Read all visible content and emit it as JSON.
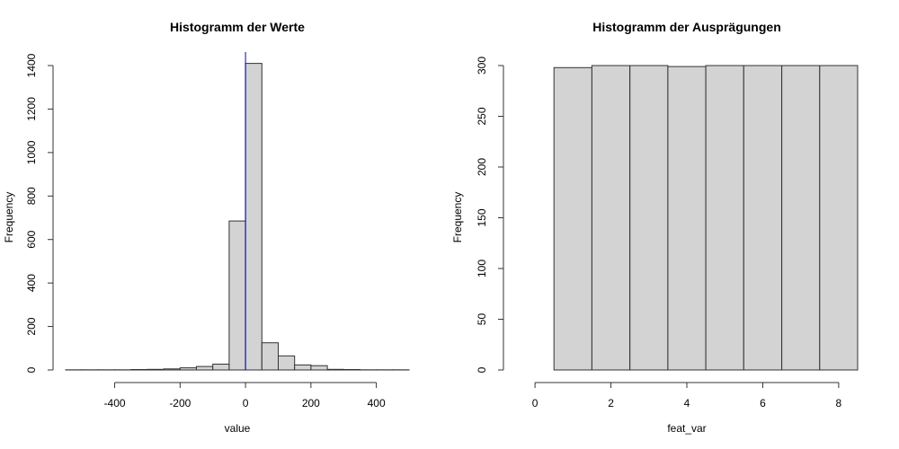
{
  "chart_data": [
    {
      "type": "bar",
      "title": "Histogramm der Werte",
      "xlabel": "value",
      "ylabel": "Frequency",
      "xlim": [
        -550,
        500
      ],
      "ylim": [
        0,
        1400
      ],
      "x_ticks": [
        -400,
        -200,
        0,
        200,
        400
      ],
      "y_ticks": [
        0,
        200,
        400,
        600,
        800,
        1000,
        1200,
        1400
      ],
      "bin_width": 50,
      "series": [
        {
          "values": [
            {
              "x0": -550,
              "x1": -500,
              "count": 1
            },
            {
              "x0": -500,
              "x1": -450,
              "count": 1
            },
            {
              "x0": -450,
              "x1": -400,
              "count": 1
            },
            {
              "x0": -400,
              "x1": -350,
              "count": 1
            },
            {
              "x0": -350,
              "x1": -300,
              "count": 2
            },
            {
              "x0": -300,
              "x1": -250,
              "count": 3
            },
            {
              "x0": -250,
              "x1": -200,
              "count": 5
            },
            {
              "x0": -200,
              "x1": -150,
              "count": 10
            },
            {
              "x0": -150,
              "x1": -100,
              "count": 16
            },
            {
              "x0": -100,
              "x1": -50,
              "count": 27
            },
            {
              "x0": -50,
              "x1": 0,
              "count": 685
            },
            {
              "x0": 0,
              "x1": 50,
              "count": 1410
            },
            {
              "x0": 50,
              "x1": 100,
              "count": 125
            },
            {
              "x0": 100,
              "x1": 150,
              "count": 65
            },
            {
              "x0": 150,
              "x1": 200,
              "count": 23
            },
            {
              "x0": 200,
              "x1": 250,
              "count": 20
            },
            {
              "x0": 250,
              "x1": 300,
              "count": 3
            },
            {
              "x0": 300,
              "x1": 350,
              "count": 2
            },
            {
              "x0": 350,
              "x1": 400,
              "count": 1
            },
            {
              "x0": 400,
              "x1": 450,
              "count": 1
            },
            {
              "x0": 450,
              "x1": 500,
              "count": 1
            }
          ]
        }
      ],
      "reference_line": {
        "x": 0,
        "color": "#0000cc"
      },
      "colors": {
        "bar_fill": "#d3d3d3",
        "bar_border": "#333333"
      }
    },
    {
      "type": "bar",
      "title": "Histogramm der Ausprägungen",
      "xlabel": "feat_var",
      "ylabel": "Frequency",
      "xlim": [
        -0.5,
        8.5
      ],
      "ylim": [
        0,
        300
      ],
      "x_ticks": [
        0,
        2,
        4,
        6,
        8
      ],
      "y_ticks": [
        0,
        50,
        100,
        150,
        200,
        250,
        300
      ],
      "bin_width": 1,
      "series": [
        {
          "values": [
            {
              "x0": -0.5,
              "x1": 0.5,
              "count": 0
            },
            {
              "x0": 0.5,
              "x1": 1.5,
              "count": 298
            },
            {
              "x0": 1.5,
              "x1": 2.5,
              "count": 300
            },
            {
              "x0": 2.5,
              "x1": 3.5,
              "count": 300
            },
            {
              "x0": 3.5,
              "x1": 4.5,
              "count": 299
            },
            {
              "x0": 4.5,
              "x1": 5.5,
              "count": 300
            },
            {
              "x0": 5.5,
              "x1": 6.5,
              "count": 300
            },
            {
              "x0": 6.5,
              "x1": 7.5,
              "count": 300
            },
            {
              "x0": 7.5,
              "x1": 8.5,
              "count": 300
            }
          ]
        }
      ],
      "colors": {
        "bar_fill": "#d3d3d3",
        "bar_border": "#333333"
      }
    }
  ]
}
